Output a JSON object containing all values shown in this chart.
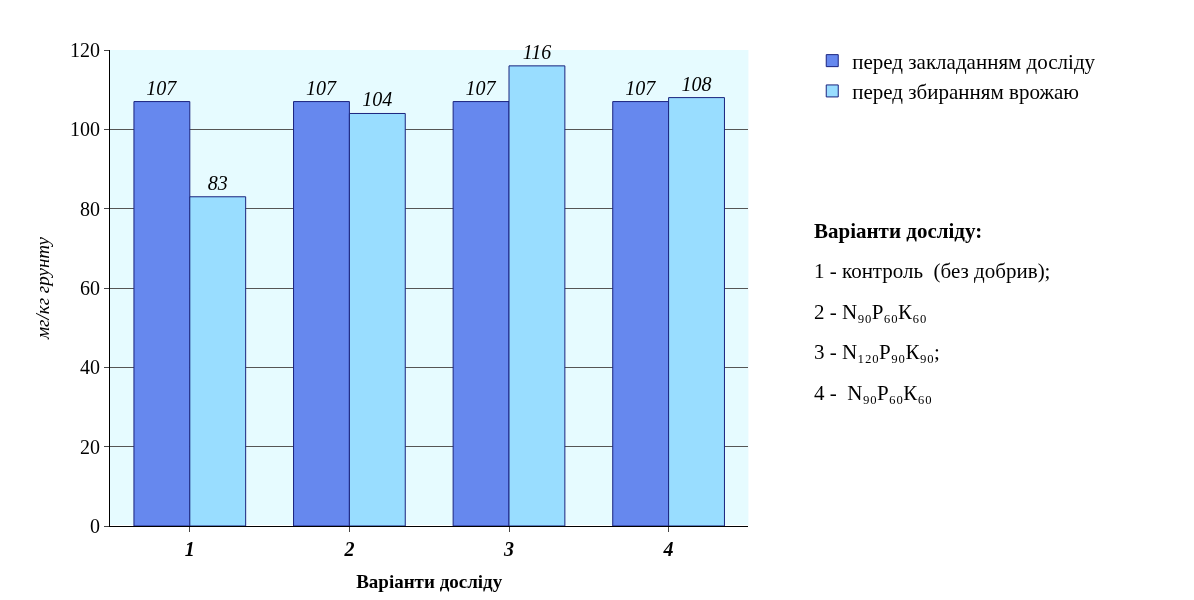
{
  "chart_data": {
    "type": "bar",
    "xlabel": "Варіанти досліду",
    "ylabel": "мг/кг грунту",
    "categories": [
      "1",
      "2",
      "3",
      "4"
    ],
    "series": [
      {
        "name": "перед закладанням досліду",
        "color": "#6688ee",
        "values": [
          107,
          107,
          107,
          107
        ]
      },
      {
        "name": "перед збиранням врожаю",
        "color": "#99ddff",
        "values": [
          83,
          104,
          116,
          108
        ]
      }
    ],
    "ylim": [
      0,
      120
    ],
    "yticks": [
      0,
      20,
      40,
      60,
      80,
      100,
      120
    ],
    "grid": "y",
    "legend": "top right",
    "data_labels": true,
    "annotations": [
      "Варіанти досліду:",
      "1 - контроль  (без добрив);",
      "2 - N₉₀P₆₀К₆₀",
      "3 - N₁₂₀P₉₀К₉₀;",
      "4 -  N₉₀P₆₀К₆₀"
    ]
  }
}
